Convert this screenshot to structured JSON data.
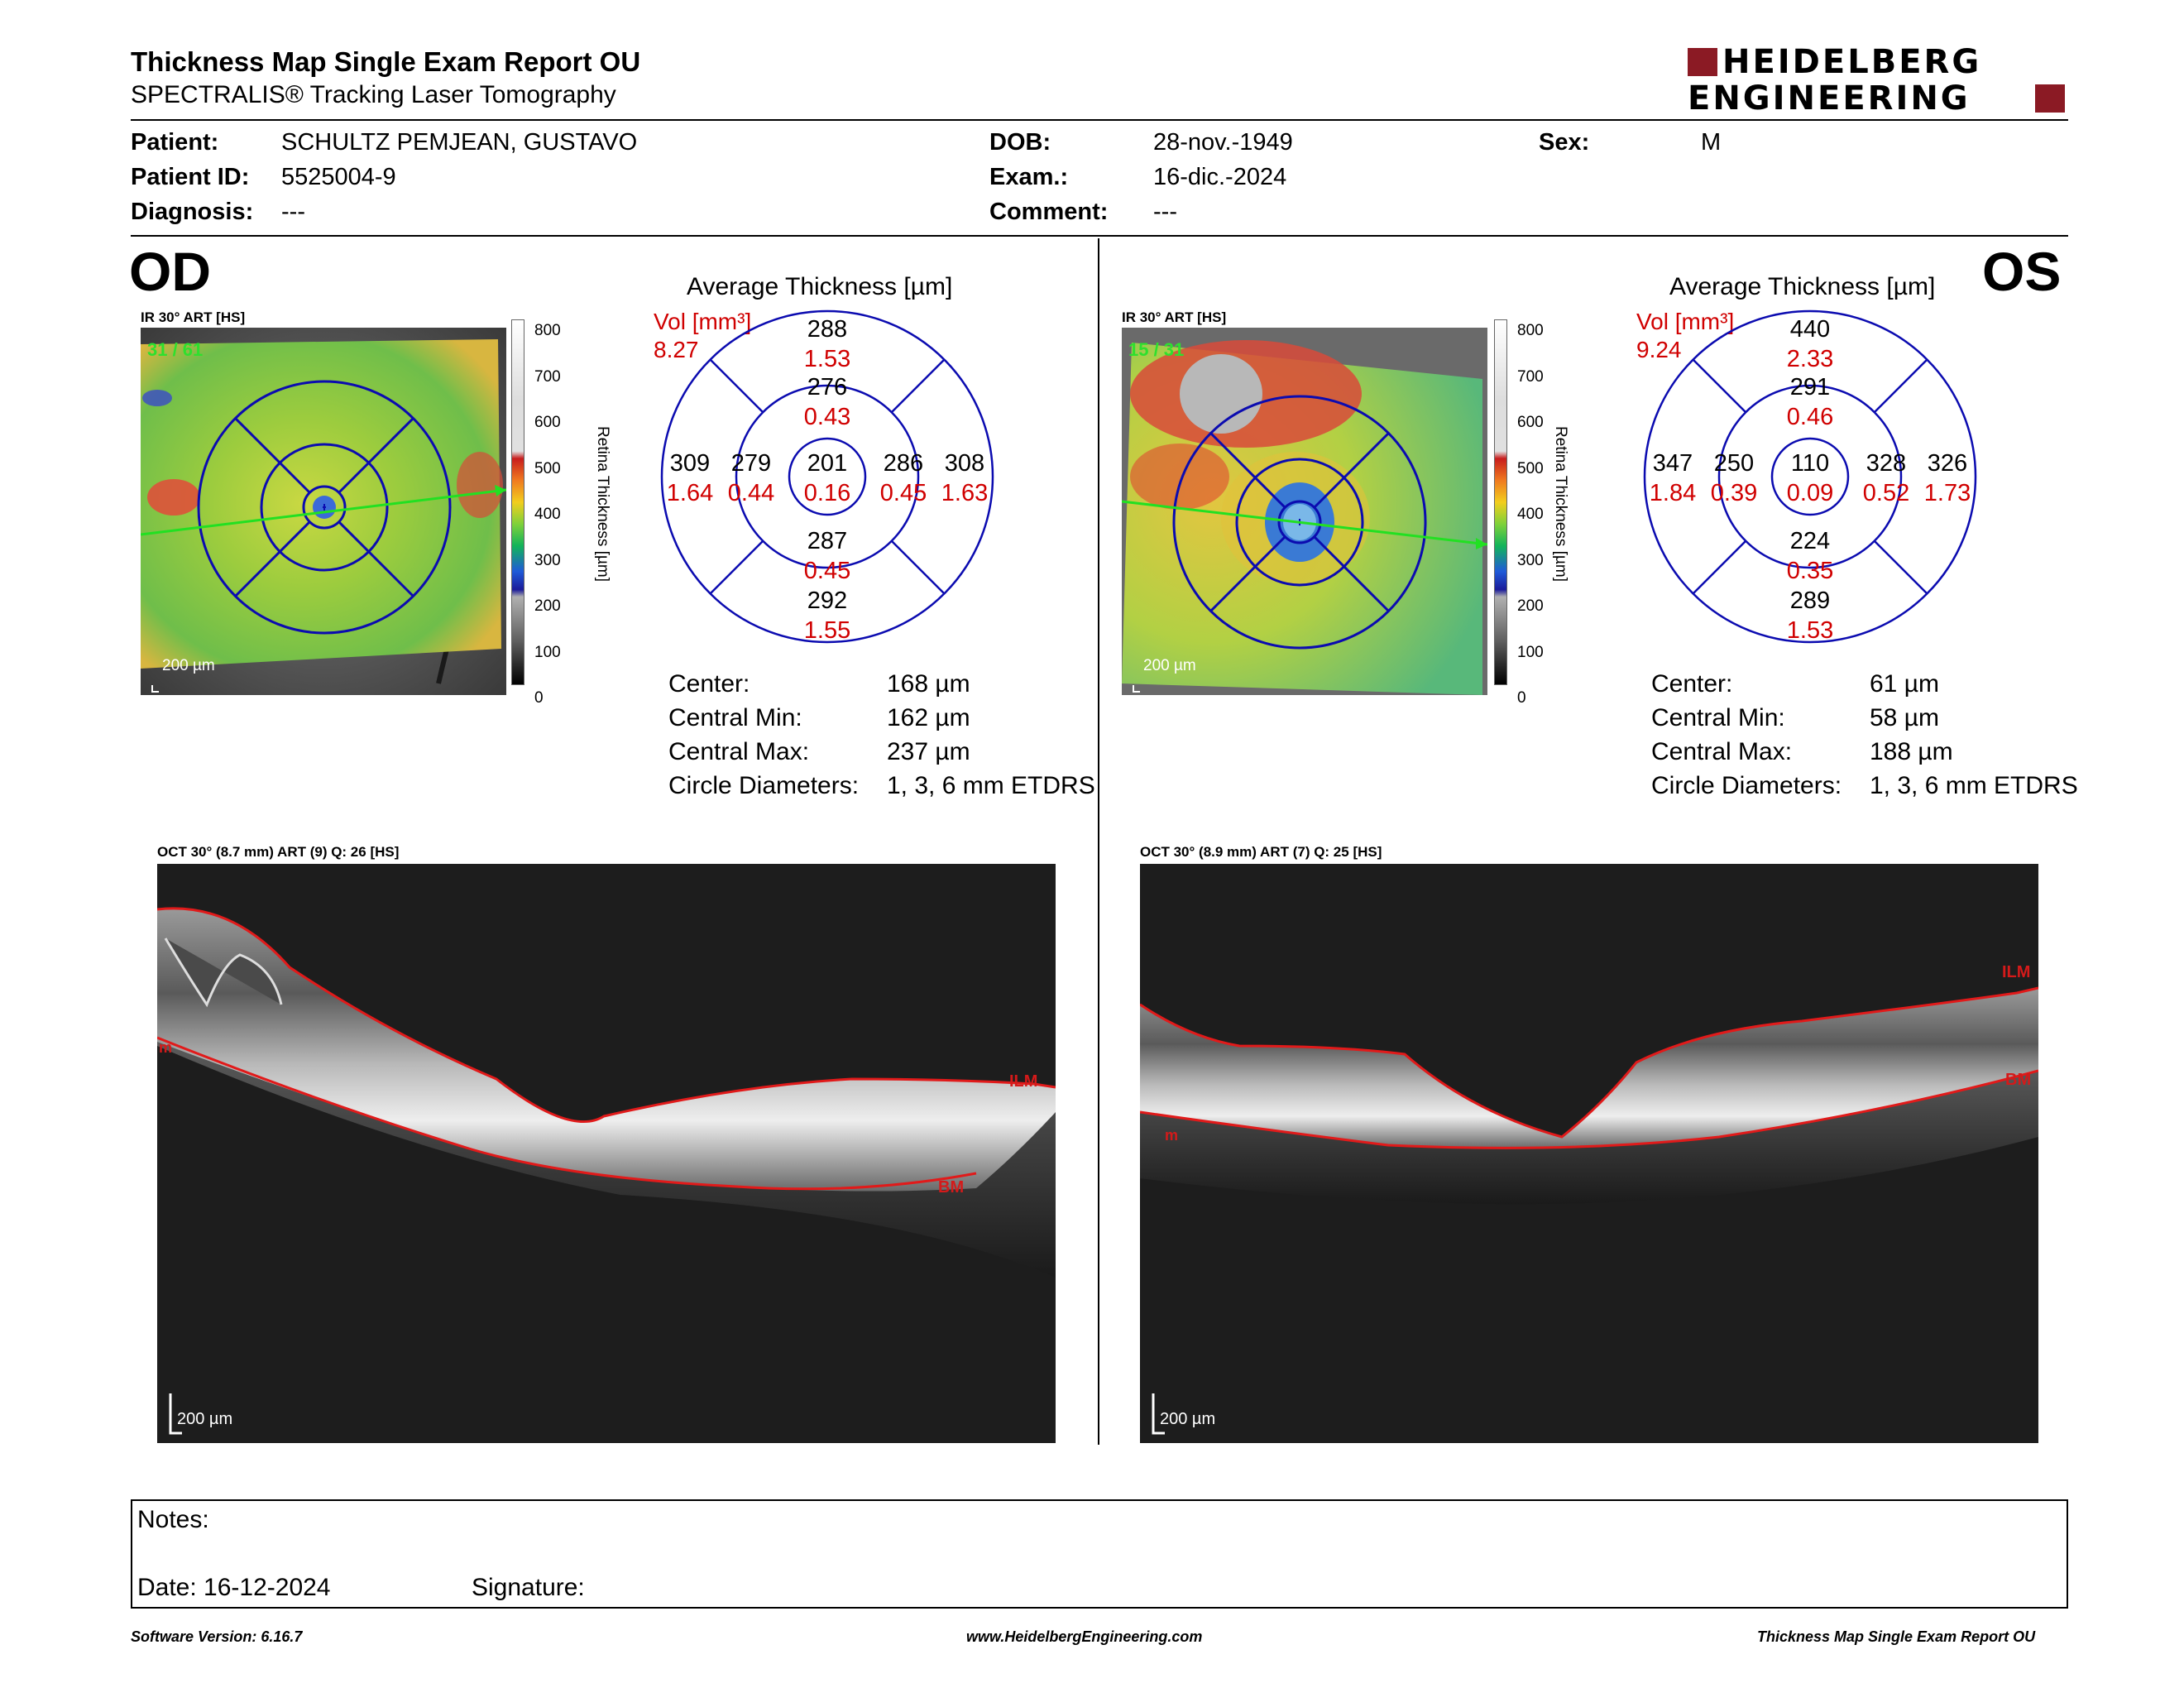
{
  "header": {
    "title": "Thickness Map Single Exam Report OU",
    "subtitle": "SPECTRALIS® Tracking Laser Tomography",
    "logo_line1": "HEIDELBERG",
    "logo_line2": "ENGINEERING",
    "brand_color": "#8b1a24"
  },
  "patient": {
    "patient_label": "Patient:",
    "patient_value": "SCHULTZ PEMJEAN, GUSTAVO",
    "id_label": "Patient ID:",
    "id_value": "5525004-9",
    "diag_label": "Diagnosis:",
    "diag_value": "---",
    "dob_label": "DOB:",
    "dob_value": "28-nov.-1949",
    "exam_label": "Exam.:",
    "exam_value": "16-dic.-2024",
    "comment_label": "Comment:",
    "comment_value": "---",
    "sex_label": "Sex:",
    "sex_value": "M"
  },
  "od": {
    "eye": "OD",
    "ir_label": "IR 30° ART [HS]",
    "frame": "31 / 61",
    "scale_label": "200 µm",
    "avg_title": "Average Thickness [µm]",
    "vol_label": "Vol [mm³]",
    "vol_total": "8.27",
    "sectors": {
      "superior_outer": {
        "thick": "288",
        "vol": "1.53"
      },
      "superior_inner": {
        "thick": "276",
        "vol": "0.43"
      },
      "temporal_outer": {
        "thick": "309",
        "vol": "1.64"
      },
      "temporal_inner": {
        "thick": "279",
        "vol": "0.44"
      },
      "center": {
        "thick": "201",
        "vol": "0.16"
      },
      "nasal_inner": {
        "thick": "286",
        "vol": "0.45"
      },
      "nasal_outer": {
        "thick": "308",
        "vol": "1.63"
      },
      "inferior_inner": {
        "thick": "287",
        "vol": "0.45"
      },
      "inferior_outer": {
        "thick": "292",
        "vol": "1.55"
      }
    },
    "center_label": "Center:",
    "center_value": "168 µm",
    "cmin_label": "Central Min:",
    "cmin_value": "162 µm",
    "cmax_label": "Central Max:",
    "cmax_value": "237 µm",
    "diam_label": "Circle Diameters:",
    "diam_value": "1, 3, 6 mm ETDRS",
    "oct_label": "OCT 30° (8.7 mm) ART (9) Q: 26 [HS]",
    "oct_scale": "200 µm",
    "layer_top": "ILM",
    "layer_bottom": "BM",
    "layer_left_cut": "m"
  },
  "os": {
    "eye": "OS",
    "ir_label": "IR 30° ART [HS]",
    "frame": "15 / 31",
    "scale_label": "200 µm",
    "avg_title": "Average Thickness [µm]",
    "vol_label": "Vol [mm³]",
    "vol_total": "9.24",
    "sectors": {
      "superior_outer": {
        "thick": "440",
        "vol": "2.33"
      },
      "superior_inner": {
        "thick": "291",
        "vol": "0.46"
      },
      "temporal_outer": {
        "thick": "347",
        "vol": "1.84"
      },
      "temporal_inner": {
        "thick": "250",
        "vol": "0.39"
      },
      "center": {
        "thick": "110",
        "vol": "0.09"
      },
      "nasal_inner": {
        "thick": "328",
        "vol": "0.52"
      },
      "nasal_outer": {
        "thick": "326",
        "vol": "1.73"
      },
      "inferior_inner": {
        "thick": "224",
        "vol": "0.35"
      },
      "inferior_outer": {
        "thick": "289",
        "vol": "1.53"
      }
    },
    "center_label": "Center:",
    "center_value": "61 µm",
    "cmin_label": "Central Min:",
    "cmin_value": "58 µm",
    "cmax_label": "Central Max:",
    "cmax_value": "188 µm",
    "diam_label": "Circle Diameters:",
    "diam_value": "1, 3, 6 mm ETDRS",
    "oct_label": "OCT 30° (8.9 mm) ART (7) Q: 25 [HS]",
    "oct_scale": "200 µm",
    "layer_top": "ILM",
    "layer_bottom": "BM",
    "layer_left_cut": "m"
  },
  "colorbar": {
    "ticks": [
      "800",
      "700",
      "600",
      "500",
      "400",
      "300",
      "200",
      "100",
      "0"
    ],
    "label": "Retina Thickness [µm]"
  },
  "notes": {
    "notes_label": "Notes:",
    "date_label": "Date: 16-12-2024",
    "signature_label": "Signature:"
  },
  "footer": {
    "software": "Software Version: 6.16.7",
    "url": "www.HeidelbergEngineering.com",
    "report": "Thickness Map Single Exam Report OU"
  }
}
